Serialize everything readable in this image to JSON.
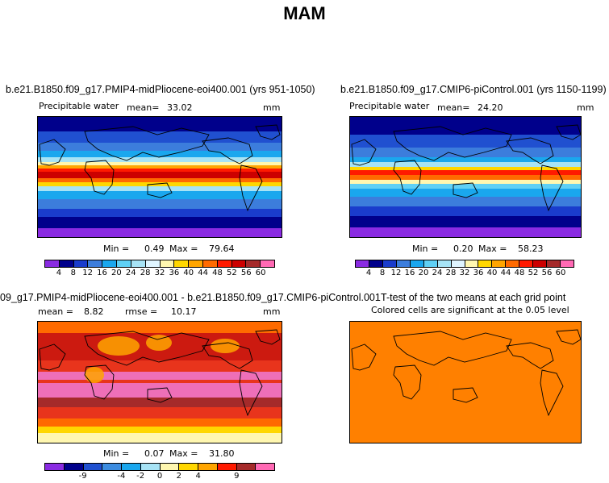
{
  "figure_title": "MAM",
  "panels": {
    "p1": {
      "title": "b.e21.B1850.f09_g17.PMIP4-midPliocene-eoi400.001 (yrs 951-1050)",
      "variable": "Precipitable water",
      "mean_label": "mean=",
      "mean": "33.02",
      "units": "mm",
      "min_label": "Min =",
      "min": "0.49",
      "max_label": "Max =",
      "max": "79.64"
    },
    "p2": {
      "title": "b.e21.B1850.f09_g17.CMIP6-piControl.001 (yrs 1150-1199)",
      "variable": "Precipitable water",
      "mean_label": "mean=",
      "mean": "24.20",
      "units": "mm",
      "min_label": "Min =",
      "min": "0.20",
      "max_label": "Max =",
      "max": "58.23"
    },
    "p3": {
      "title": "09_g17.PMIP4-midPliocene-eoi400.001 - b.e21.B1850.f09_g17.CMIP6-piControl.001",
      "mean_label": "mean =",
      "mean": "8.82",
      "rmse_label": "rmse =",
      "rmse": "10.17",
      "units": "mm",
      "min_label": "Min =",
      "min": "0.07",
      "max_label": "Max =",
      "max": "31.80"
    },
    "p4": {
      "title": "T-test of the two means at each grid point",
      "subtitle": "Colored cells are significant at the 0.05 level"
    }
  },
  "colorbar_abs": {
    "labels": [
      "4",
      "8",
      "12",
      "16",
      "20",
      "24",
      "28",
      "32",
      "36",
      "40",
      "44",
      "48",
      "52",
      "56",
      "60"
    ],
    "colors": [
      "#8a2be2",
      "#00008b",
      "#1a3ccc",
      "#3c7ddc",
      "#1aa7ee",
      "#5fd0f5",
      "#a7e3f5",
      "#dff5ff",
      "#fff7b0",
      "#ffd700",
      "#ffa500",
      "#ff6a00",
      "#ff1a00",
      "#cc0000",
      "#a52a2a",
      "#ff69b4"
    ]
  },
  "colorbar_diff": {
    "labels": [
      "-9",
      "-4",
      "-2",
      "0",
      "2",
      "4",
      "9"
    ],
    "colors": [
      "#8a2be2",
      "#00008b",
      "#2050d0",
      "#3c8ce0",
      "#1aa7ee",
      "#a7e3f5",
      "#fff7b0",
      "#ffd700",
      "#ffa500",
      "#ff1a00",
      "#a52a2a",
      "#ff69b4"
    ]
  },
  "colors": {
    "ttest_fill": "#ff8000",
    "diff_base": "#e8341c",
    "diff_pink": "#ee6fb8"
  }
}
